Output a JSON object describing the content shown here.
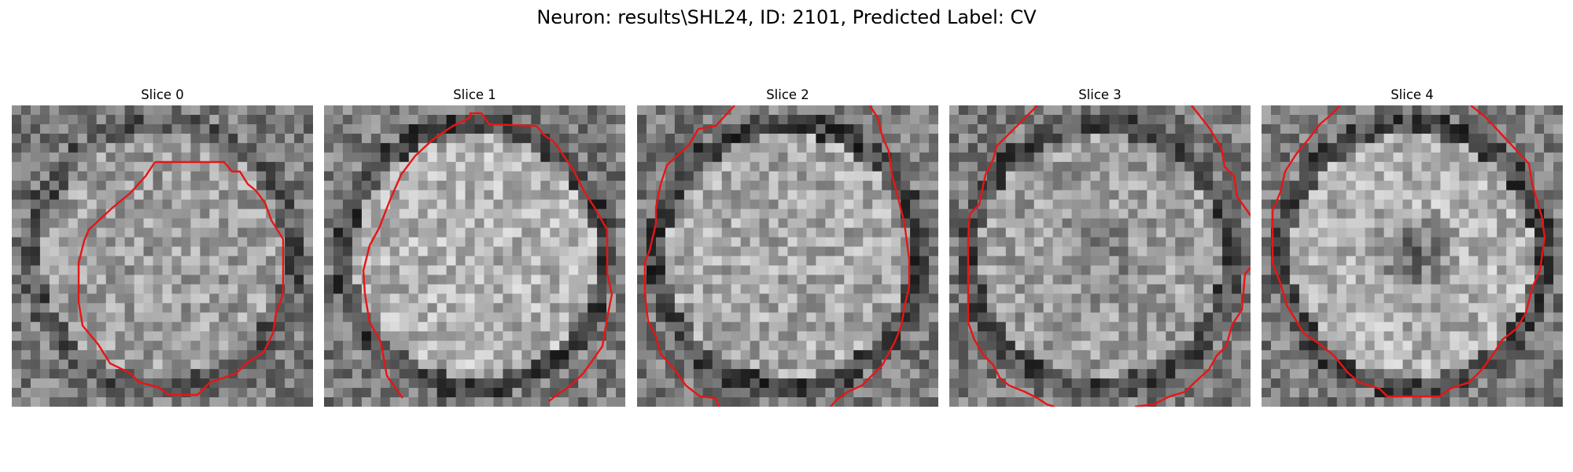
{
  "figure": {
    "title": "Neuron: results\\SHL24, ID: 2101, Predicted Label: CV",
    "contour_color": "#e81515"
  },
  "panels": [
    {
      "title": "Slice 0",
      "center": 0.62,
      "ring": 0.34,
      "hole": 0.0
    },
    {
      "title": "Slice 1",
      "center": 0.7,
      "ring": 0.28,
      "hole": 0.0
    },
    {
      "title": "Slice 2",
      "center": 0.66,
      "ring": 0.26,
      "hole": 0.0
    },
    {
      "title": "Slice 3",
      "center": 0.62,
      "ring": 0.3,
      "hole": 0.12
    },
    {
      "title": "Slice 4",
      "center": 0.7,
      "ring": 0.28,
      "hole": 0.32
    }
  ]
}
